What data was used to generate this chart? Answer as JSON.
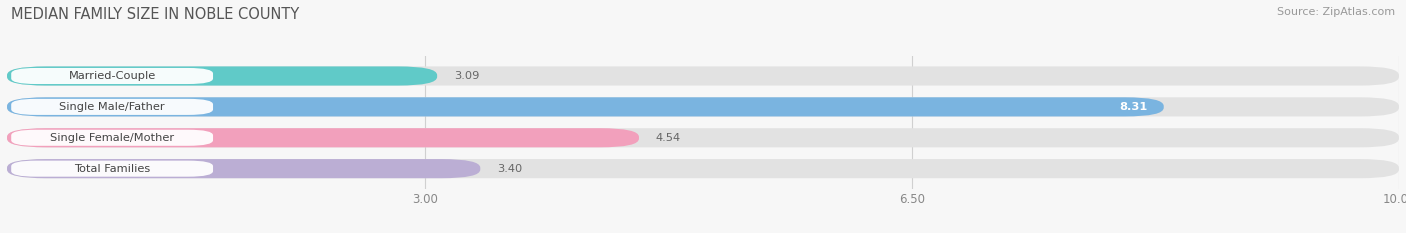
{
  "title": "MEDIAN FAMILY SIZE IN NOBLE COUNTY",
  "source": "Source: ZipAtlas.com",
  "categories": [
    "Married-Couple",
    "Single Male/Father",
    "Single Female/Mother",
    "Total Families"
  ],
  "values": [
    3.09,
    8.31,
    4.54,
    3.4
  ],
  "colors": [
    "#60cac8",
    "#7ab4e0",
    "#f2a0bc",
    "#bbaed4"
  ],
  "xmin": 0,
  "xmax": 10.0,
  "xticks": [
    3.0,
    6.5,
    10.0
  ],
  "bar_height": 0.62,
  "background_color": "#f7f7f7",
  "bar_bg_color": "#e2e2e2",
  "label_bg_color": "#ffffff",
  "label_text_color": "#444444",
  "value_inside_color": "#ffffff",
  "value_outside_color": "#666666",
  "grid_color": "#d0d0d0",
  "tick_color": "#888888",
  "title_color": "#555555",
  "source_color": "#999999"
}
